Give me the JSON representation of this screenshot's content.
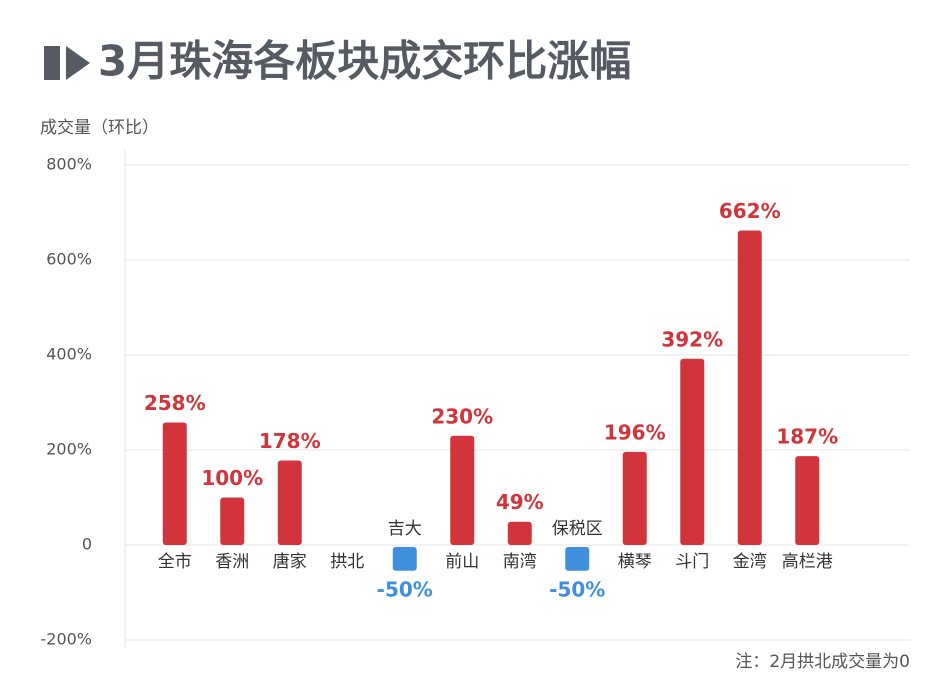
{
  "chart_data": {
    "type": "bar",
    "title": "3月珠海各板块成交环比涨幅",
    "y_label": "成交量（环比）",
    "annotation": "注：2月拱北成交量为0",
    "categories": [
      "全市",
      "香洲",
      "唐家",
      "拱北",
      "吉大",
      "前山",
      "南湾",
      "保税区",
      "横琴",
      "斗门",
      "金湾",
      "高栏港"
    ],
    "values": [
      258,
      100,
      178,
      null,
      -50,
      230,
      49,
      -50,
      196,
      392,
      662,
      187
    ],
    "value_labels": [
      "258%",
      "100%",
      "178%",
      null,
      "-50%",
      "230%",
      "49%",
      "-50%",
      "196%",
      "392%",
      "662%",
      "187%"
    ],
    "color": "#d1343b",
    "negative_color": "#3f8fdc",
    "ylim": [
      -200,
      800
    ],
    "yticks": [
      {
        "value": -200,
        "label": "-200%"
      },
      0,
      {
        "value": 200,
        "label": "200%"
      },
      {
        "value": 400,
        "label": "400%"
      },
      {
        "value": 600,
        "label": "600%"
      },
      {
        "value": 800,
        "label": "800%"
      }
    ],
    "grid": true
  }
}
